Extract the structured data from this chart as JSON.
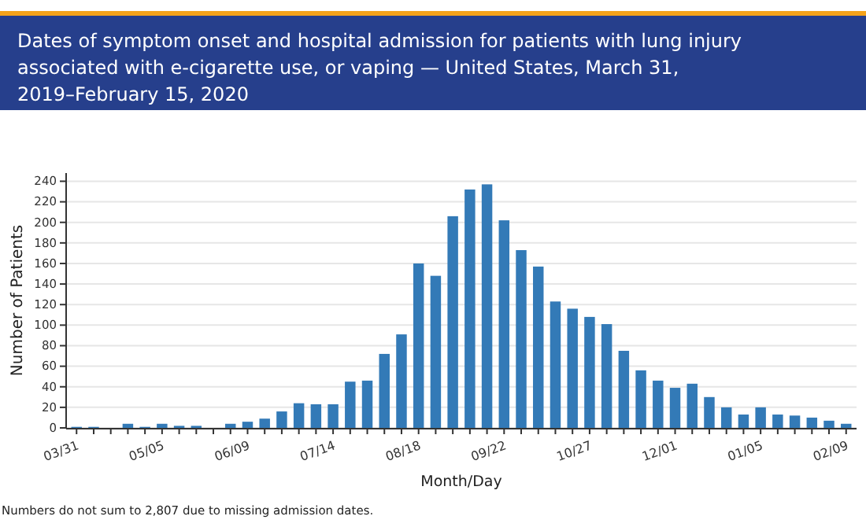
{
  "chart_data": {
    "type": "bar",
    "title": "Dates of symptom onset and hospital admission for patients with lung injury associated with e-cigarette use, or vaping — United States, March 31, 2019–February 15, 2020",
    "xlabel": "Month/Day",
    "ylabel": "Number of Patients",
    "categories": [
      "03/31",
      null,
      null,
      null,
      null,
      "05/05",
      null,
      null,
      null,
      null,
      "06/09",
      null,
      null,
      null,
      null,
      "07/14",
      null,
      null,
      null,
      null,
      "08/18",
      null,
      null,
      null,
      null,
      "09/22",
      null,
      null,
      null,
      null,
      "10/27",
      null,
      null,
      null,
      null,
      "12/01",
      null,
      null,
      null,
      null,
      "01/05",
      null,
      null,
      null,
      null,
      "02/09"
    ],
    "values": [
      1,
      1,
      0,
      4,
      1,
      4,
      2,
      2,
      0,
      4,
      6,
      9,
      16,
      24,
      23,
      23,
      45,
      46,
      72,
      91,
      160,
      148,
      206,
      232,
      237,
      202,
      173,
      157,
      123,
      116,
      108,
      101,
      75,
      56,
      46,
      39,
      43,
      30,
      20,
      13,
      20,
      13,
      12,
      10,
      7,
      4
    ],
    "color": "#337ab7",
    "ylim": [
      0,
      248
    ],
    "yticks": [
      0,
      20,
      40,
      60,
      80,
      100,
      120,
      140,
      160,
      180,
      200,
      220,
      240
    ],
    "grid": "y",
    "annotations": [
      "Numbers do not sum to 2,807 due to missing admission dates."
    ]
  }
}
